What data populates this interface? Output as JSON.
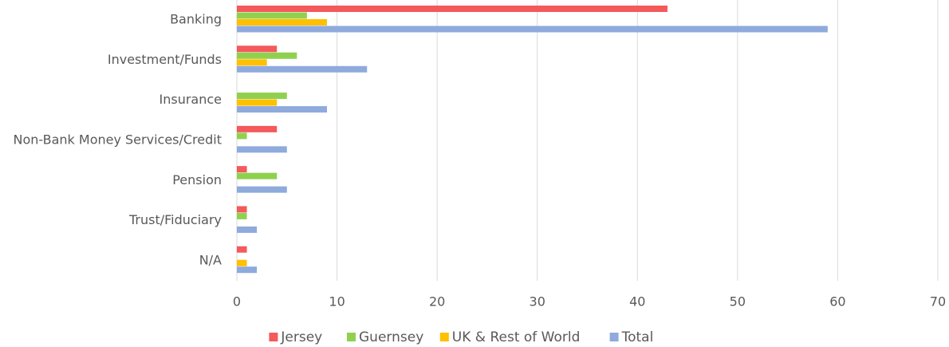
{
  "chart_data": {
    "type": "bar",
    "orientation": "horizontal",
    "categories": [
      "Banking",
      "Investment/Funds",
      "Insurance",
      "Non-Bank Money Services/Credit",
      "Pension",
      "Trust/Fiduciary",
      "N/A"
    ],
    "series": [
      {
        "name": "Jersey",
        "color": "#f4595b",
        "values": [
          43,
          4,
          0,
          4,
          1,
          1,
          1
        ]
      },
      {
        "name": "Guernsey",
        "color": "#8fd14f",
        "values": [
          7,
          6,
          5,
          1,
          4,
          1,
          0
        ]
      },
      {
        "name": "UK & Rest of World",
        "color": "#ffc000",
        "values": [
          9,
          3,
          4,
          0,
          0,
          0,
          1
        ]
      },
      {
        "name": "Total",
        "color": "#8faadc",
        "values": [
          59,
          13,
          9,
          5,
          5,
          2,
          2
        ]
      }
    ],
    "xlim": [
      0,
      70
    ],
    "xticks": [
      0,
      10,
      20,
      30,
      40,
      50,
      60,
      70
    ],
    "grid": true,
    "legend": "bottom"
  }
}
